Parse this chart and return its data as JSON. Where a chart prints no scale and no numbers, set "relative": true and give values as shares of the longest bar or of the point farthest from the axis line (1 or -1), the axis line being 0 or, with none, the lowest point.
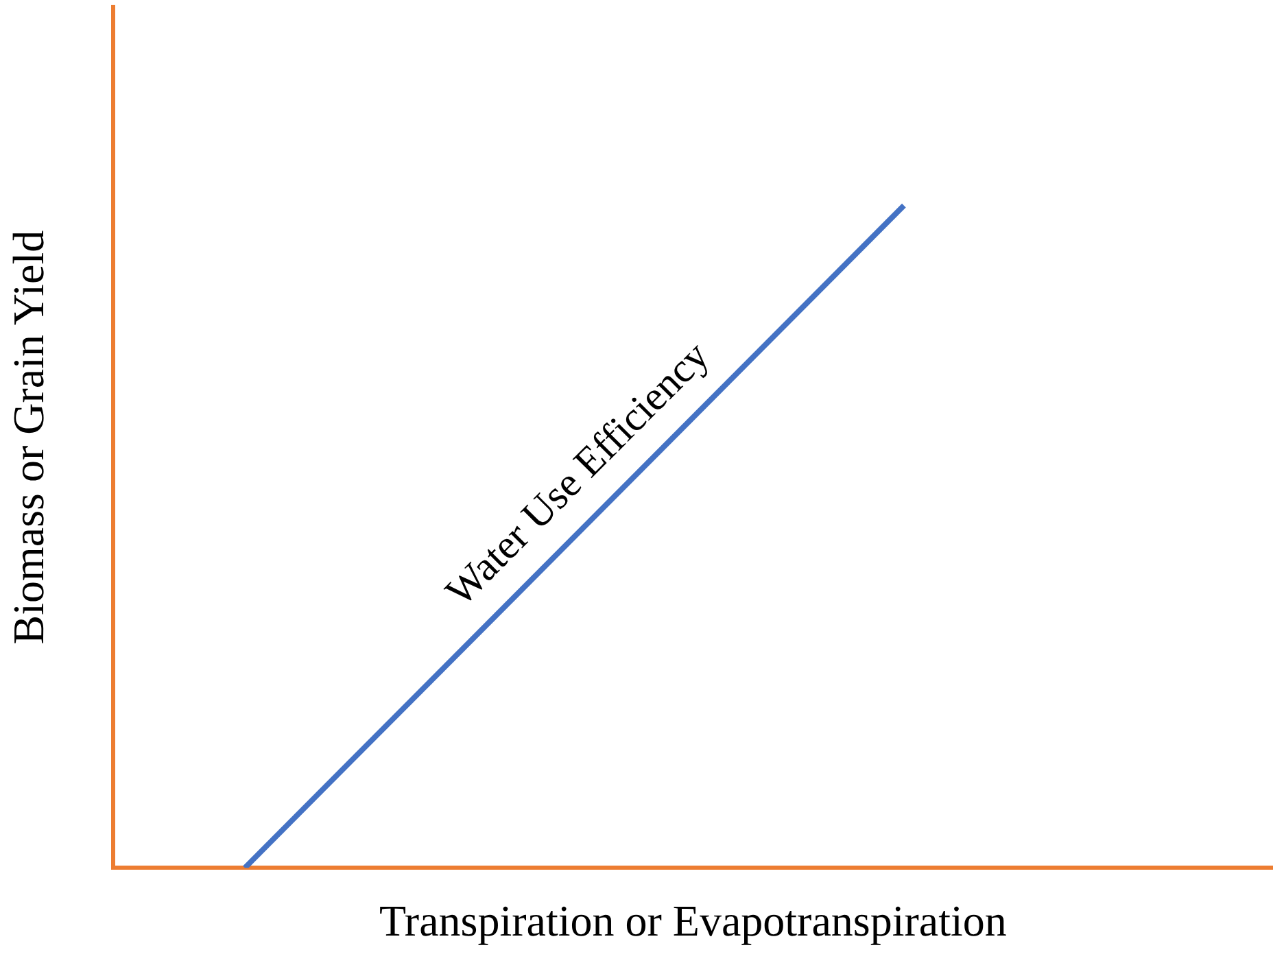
{
  "chart_data": {
    "type": "line",
    "xlabel": "Transpiration or Evapotranspiration",
    "ylabel": "Biomass or Grain Yield",
    "categories": [
      null,
      null,
      null,
      null,
      null,
      null,
      null,
      null,
      null,
      null,
      null,
      null,
      null,
      null,
      null,
      null,
      null,
      null,
      null,
      null,
      null,
      null,
      null,
      null,
      null,
      null,
      null,
      null,
      null,
      null,
      null,
      null,
      null,
      null,
      null,
      null,
      null,
      null,
      null,
      null,
      null,
      null,
      null,
      null,
      null
    ],
    "series": [
      {
        "color": "#4472c4",
        "values": [
          null,
          null,
          null,
          null,
          null,
          0,
          null,
          null,
          null,
          null,
          null,
          null,
          null,
          null,
          null,
          null,
          null,
          null,
          null,
          null,
          null,
          null,
          null,
          null,
          null,
          null,
          null,
          null,
          null,
          null,
          1,
          null,
          null,
          null,
          null,
          null,
          null,
          null,
          null,
          null,
          null,
          null,
          null,
          null,
          null
        ]
      }
    ],
    "relative": true,
    "tick_labels": false,
    "grid": false,
    "marker": "none",
    "annotations": [
      "Water Use Efficiency"
    ]
  }
}
